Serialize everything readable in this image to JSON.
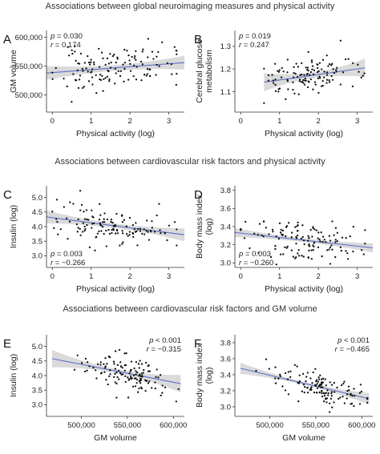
{
  "sections": [
    {
      "title": "Associations between global neuroimaging measures and physical activity"
    },
    {
      "title": "Associations between cardiovascular risk factors and physical activity"
    },
    {
      "title": "Associations between cardiovascular risk factors and GM volume"
    }
  ],
  "colors": {
    "points": "#111111",
    "fit_line": "#5b6fc7",
    "ci_band": "#d3d3d3",
    "axis": "#333333"
  },
  "chart_data": [
    {
      "id": "A",
      "type": "scatter",
      "xlabel": "Physical activity (log)",
      "ylabel": "GM volume",
      "xlim": [
        -0.15,
        3.4
      ],
      "ylim": [
        470000,
        612000
      ],
      "xticks": [
        0,
        1,
        2,
        3
      ],
      "xtick_labels": [
        "0",
        "1",
        "2",
        "3"
      ],
      "yticks": [
        500000,
        550000,
        600000
      ],
      "ytick_labels": [
        "500,000",
        "550,000",
        "600,000"
      ],
      "stats": {
        "p": "0.030",
        "r": "0.174",
        "position": "top-left"
      },
      "fit": {
        "y_at_xmin": 538000,
        "y_at_xmax": 556000,
        "ci_at_ends": 12000,
        "ci_at_center": 5000
      },
      "points_seed": 11,
      "n_points": 130,
      "x_dist": [
        1.55,
        0.75,
        0.0,
        3.2
      ],
      "y_noise": 25000
    },
    {
      "id": "B",
      "type": "scatter",
      "xlabel": "Physical activity (log)",
      "ylabel": "Cerebral glucose\nmetabolism",
      "xlim": [
        -0.15,
        3.4
      ],
      "ylim": [
        1.01,
        1.37
      ],
      "xticks": [
        0,
        1,
        2,
        3
      ],
      "xtick_labels": [
        "0",
        "1",
        "2",
        "3"
      ],
      "yticks": [
        1.1,
        1.2,
        1.3
      ],
      "ytick_labels": [
        "1.1",
        "1.2",
        "1.3"
      ],
      "stats": {
        "p": "0.019",
        "r": "0.247",
        "position": "top-left"
      },
      "fit": {
        "y_at_xmin": 1.142,
        "y_at_xmax": 1.205,
        "ci_at_ends": 0.04,
        "ci_at_center": 0.013
      },
      "fit_xrange": [
        0.6,
        3.2
      ],
      "points_seed": 23,
      "n_points": 120,
      "x_dist": [
        1.75,
        0.65,
        0.6,
        3.2
      ],
      "y_noise": 0.055
    },
    {
      "id": "C",
      "type": "scatter",
      "xlabel": "Physical activity (log)",
      "ylabel": "Insulin (log)",
      "xlim": [
        -0.15,
        3.4
      ],
      "ylim": [
        2.6,
        5.4
      ],
      "xticks": [
        0,
        1,
        2,
        3
      ],
      "xtick_labels": [
        "0",
        "1",
        "2",
        "3"
      ],
      "yticks": [
        3.0,
        3.5,
        4.0,
        4.5,
        5.0
      ],
      "ytick_labels": [
        "3.0",
        "3.5",
        "4.0",
        "4.5",
        "5.0"
      ],
      "stats": {
        "p": "0.003",
        "r": "−0.266",
        "position": "bottom-left"
      },
      "fit": {
        "y_at_xmin": 4.33,
        "y_at_xmax": 3.72,
        "ci_at_ends": 0.22,
        "ci_at_center": 0.08
      },
      "points_seed": 37,
      "n_points": 130,
      "x_dist": [
        1.6,
        0.75,
        0.0,
        3.2
      ],
      "y_noise": 0.45
    },
    {
      "id": "D",
      "type": "scatter",
      "xlabel": "Physical activity (log)",
      "ylabel": "Body mass index\n(log)",
      "xlim": [
        -0.15,
        3.4
      ],
      "ylim": [
        2.95,
        3.85
      ],
      "xticks": [
        0,
        1,
        2,
        3
      ],
      "xtick_labels": [
        "0",
        "1",
        "2",
        "3"
      ],
      "yticks": [
        3.0,
        3.2,
        3.4,
        3.6,
        3.8
      ],
      "ytick_labels": [
        "3.0",
        "3.2",
        "3.4",
        "3.6",
        "3.8"
      ],
      "stats": {
        "p": "0.003",
        "r": "−0.260",
        "position": "bottom-left"
      },
      "fit": {
        "y_at_xmin": 3.335,
        "y_at_xmax": 3.165,
        "ci_at_ends": 0.05,
        "ci_at_center": 0.02
      },
      "points_seed": 53,
      "n_points": 130,
      "x_dist": [
        1.6,
        0.75,
        0.0,
        3.2
      ],
      "y_noise": 0.14
    },
    {
      "id": "E",
      "type": "scatter",
      "xlabel": "GM volume",
      "ylabel": "Insulin (log)",
      "xlim": [
        462000,
        612000
      ],
      "ylim": [
        2.6,
        5.4
      ],
      "xticks": [
        500000,
        550000,
        600000
      ],
      "xtick_labels": [
        "500,000",
        "550,000",
        "600,000"
      ],
      "yticks": [
        3.0,
        3.5,
        4.0,
        4.5,
        5.0
      ],
      "ytick_labels": [
        "3.0",
        "3.5",
        "4.0",
        "4.5",
        "5.0"
      ],
      "stats": {
        "p": "< 0.001",
        "r": "−0.315",
        "position": "top-right"
      },
      "fit": {
        "y_at_xmin": 4.58,
        "y_at_xmax": 3.72,
        "ci_at_ends": 0.3,
        "ci_at_center": 0.07
      },
      "fit_xrange": [
        468000,
        608000
      ],
      "points_seed": 71,
      "n_points": 130,
      "x_dist": [
        548000,
        25000,
        470000,
        606000
      ],
      "y_noise": 0.4
    },
    {
      "id": "F",
      "type": "scatter",
      "xlabel": "GM volume",
      "ylabel": "Body mass index\n(log)",
      "xlim": [
        462000,
        612000
      ],
      "ylim": [
        2.88,
        3.9
      ],
      "xticks": [
        500000,
        550000,
        600000
      ],
      "xtick_labels": [
        "500,000",
        "550,000",
        "600,000"
      ],
      "yticks": [
        3.0,
        3.2,
        3.4,
        3.6,
        3.8
      ],
      "ytick_labels": [
        "3.0",
        "3.2",
        "3.4",
        "3.6",
        "3.8"
      ],
      "stats": {
        "p": "< 0.001",
        "r": "−0.465",
        "position": "top-right"
      },
      "fit": {
        "y_at_xmin": 3.48,
        "y_at_xmax": 3.1,
        "ci_at_ends": 0.07,
        "ci_at_center": 0.018
      },
      "fit_xrange": [
        468000,
        608000
      ],
      "points_seed": 89,
      "n_points": 130,
      "x_dist": [
        552000,
        25000,
        470000,
        606000
      ],
      "y_noise": 0.12
    }
  ]
}
